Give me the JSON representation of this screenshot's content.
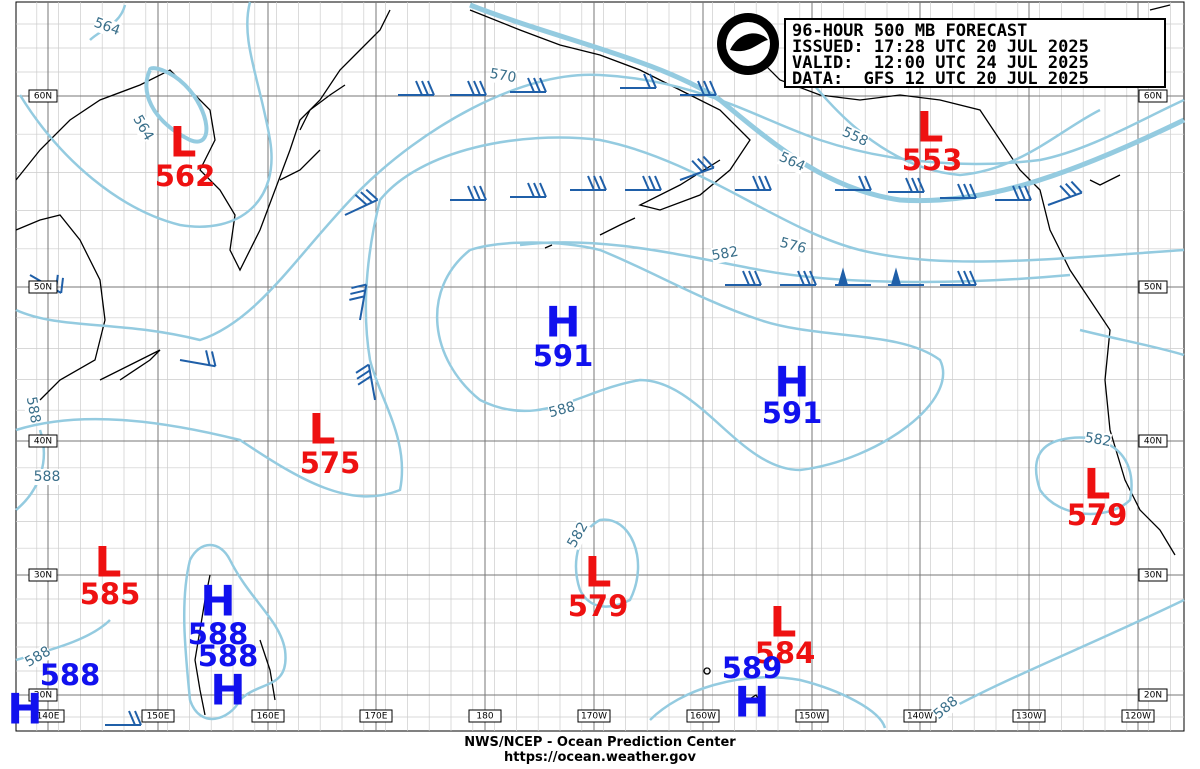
{
  "header": {
    "title": "96-HOUR 500 MB FORECAST",
    "issued": "ISSUED: 17:28 UTC 20 JUL 2025",
    "valid": "VALID:  12:00 UTC 24 JUL 2025",
    "data": "DATA:  GFS 12 UTC 20 JUL 2025"
  },
  "footer": {
    "agency": "NWS/NCEP - Ocean Prediction Center",
    "url": "https://ocean.weather.gov"
  },
  "lat_labels": [
    "60N",
    "50N",
    "40N",
    "30N",
    "20N"
  ],
  "lon_labels": [
    "140E",
    "150E",
    "160E",
    "170E",
    "180",
    "170W",
    "160W",
    "150W",
    "140W",
    "130W",
    "120W"
  ],
  "pressure_centers": [
    {
      "symbol": "L",
      "value": "562"
    },
    {
      "symbol": "L",
      "value": "553"
    },
    {
      "symbol": "H",
      "value": "591"
    },
    {
      "symbol": "H",
      "value": "591"
    },
    {
      "symbol": "L",
      "value": "575"
    },
    {
      "symbol": "L",
      "value": "579"
    },
    {
      "symbol": "L",
      "value": "585"
    },
    {
      "symbol": "L",
      "value": "579"
    },
    {
      "symbol": "H",
      "value": "588"
    },
    {
      "value": "588"
    },
    {
      "symbol": "H"
    },
    {
      "symbol": "L",
      "value": "584"
    },
    {
      "symbol": "H",
      "value": "589"
    },
    {
      "value": "588"
    },
    {
      "symbol": "H"
    }
  ],
  "contour_labels": [
    "564",
    "564",
    "570",
    "558",
    "564",
    "582",
    "576",
    "588",
    "588",
    "588",
    "582",
    "582",
    "588",
    "588"
  ]
}
